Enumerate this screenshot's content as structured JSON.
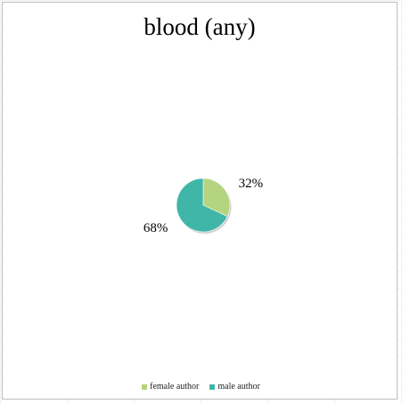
{
  "chart_data": {
    "type": "pie",
    "title": "blood (any)",
    "categories": [
      "female author",
      "male author"
    ],
    "values": [
      32,
      68
    ],
    "labels": [
      "32%",
      "68%"
    ],
    "colors": [
      "#b5d47f",
      "#3fb6a8"
    ],
    "legend": "bottom"
  }
}
